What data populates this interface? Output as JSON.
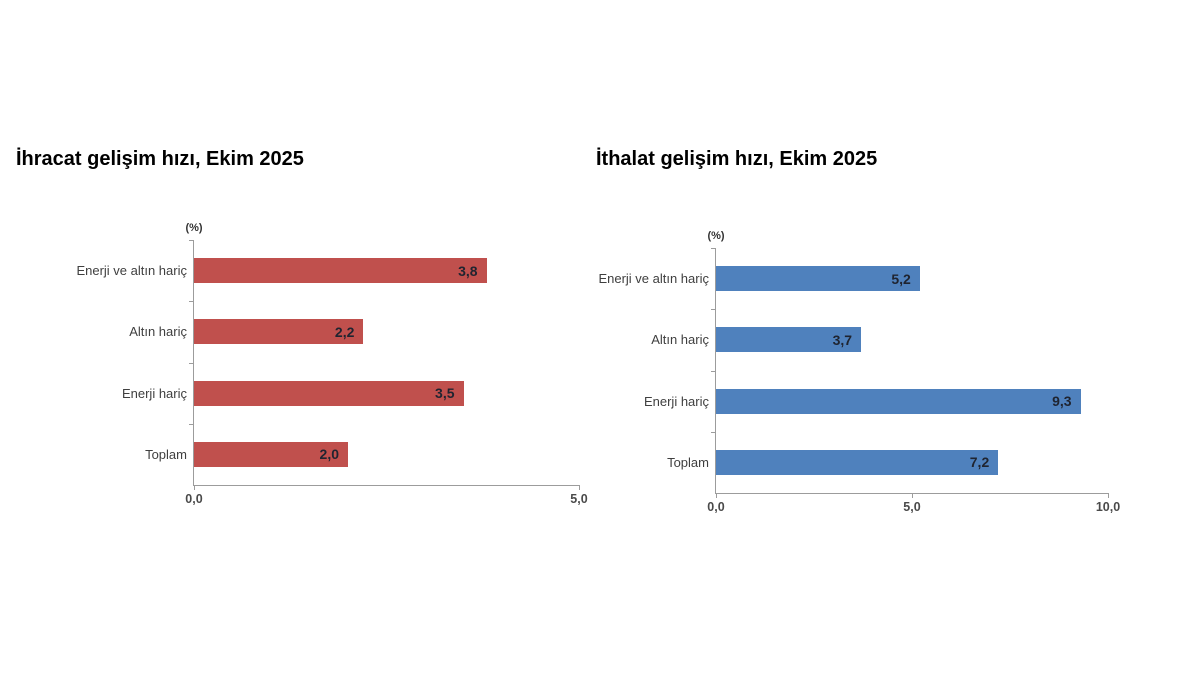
{
  "page": {
    "background_color": "#ffffff"
  },
  "chart_data": [
    {
      "type": "bar",
      "orientation": "horizontal",
      "title": "İhracat gelişim hızı, Ekim 2025",
      "unit_label": "(%)",
      "categories": [
        "Enerji ve altın hariç",
        "Altın hariç",
        "Enerji hariç",
        "Toplam"
      ],
      "values": [
        3.8,
        2.2,
        3.5,
        2.0
      ],
      "value_labels": [
        "3,8",
        "2,2",
        "3,5",
        "2,0"
      ],
      "xlim": [
        0,
        5
      ],
      "tick_values": [
        0,
        5
      ],
      "ticks": [
        "0,0",
        "5,0"
      ],
      "bar_color": "#C0504D",
      "grid": false,
      "legend": false
    },
    {
      "type": "bar",
      "orientation": "horizontal",
      "title": "İthalat gelişim hızı, Ekim 2025",
      "unit_label": "(%)",
      "categories": [
        "Enerji ve altın hariç",
        "Altın hariç",
        "Enerji hariç",
        "Toplam"
      ],
      "values": [
        5.2,
        3.7,
        9.3,
        7.2
      ],
      "value_labels": [
        "5,2",
        "3,7",
        "9,3",
        "7,2"
      ],
      "xlim": [
        0,
        10
      ],
      "tick_values": [
        0,
        5,
        10
      ],
      "ticks": [
        "0,0",
        "5,0",
        "10,0"
      ],
      "bar_color": "#4F81BD",
      "grid": false,
      "legend": false
    }
  ]
}
